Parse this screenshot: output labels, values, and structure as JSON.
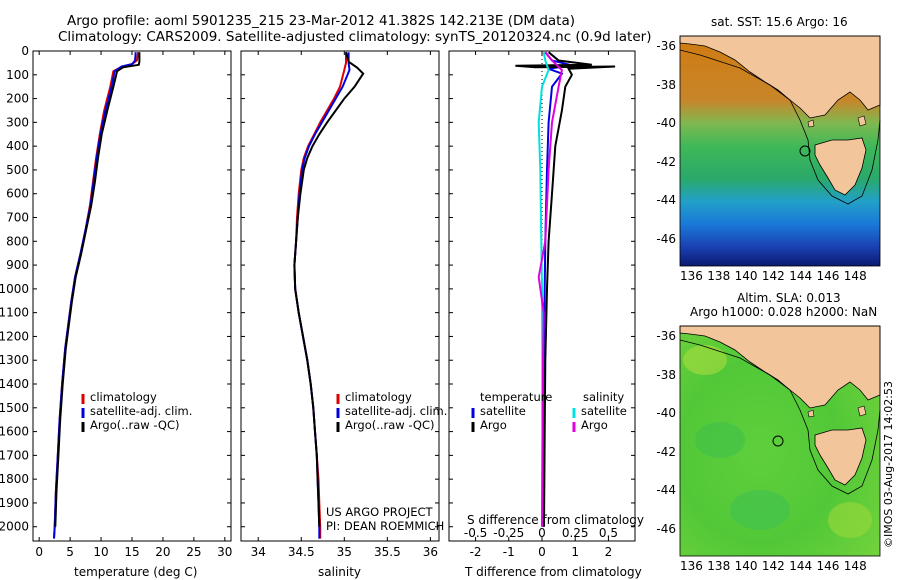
{
  "header": {
    "title_line1": "Argo profile: aoml 5901235_215 23-Mar-2012 41.382S 142.213E (DM data)",
    "title_line2": "Climatology: CARS2009. Satellite-adjusted climatology: synTS_20120324.nc (0.9d later)"
  },
  "chart_data": [
    {
      "type": "line",
      "panel": "temperature",
      "xlabel": "temperature (deg C)",
      "ylabel": "",
      "xlim": [
        -1,
        31
      ],
      "ylim": [
        2060,
        0
      ],
      "xticks": [
        0,
        5,
        10,
        15,
        20,
        25,
        30
      ],
      "yticks": [
        0,
        100,
        200,
        300,
        400,
        500,
        600,
        700,
        800,
        900,
        1000,
        1100,
        1200,
        1300,
        1400,
        1500,
        1600,
        1700,
        1800,
        1900,
        2000
      ],
      "legend": [
        "climatology",
        "satellite-adj. clim.",
        "Argo(..raw -QC)"
      ],
      "series": [
        {
          "name": "climatology",
          "color": "#e00000",
          "points": [
            [
              16,
              5
            ],
            [
              15.8,
              40
            ],
            [
              15,
              55
            ],
            [
              13.5,
              65
            ],
            [
              12,
              85
            ],
            [
              11.5,
              150
            ],
            [
              10.5,
              250
            ],
            [
              9.8,
              350
            ],
            [
              9.2,
              450
            ],
            [
              8.7,
              550
            ],
            [
              8.2,
              650
            ],
            [
              7.5,
              750
            ],
            [
              6.7,
              850
            ],
            [
              5.8,
              950
            ],
            [
              5.2,
              1050
            ],
            [
              4.7,
              1150
            ],
            [
              4.2,
              1250
            ],
            [
              3.7,
              1400
            ],
            [
              3.3,
              1550
            ],
            [
              3,
              1700
            ],
            [
              2.7,
              1850
            ],
            [
              2.5,
              2000
            ],
            [
              2.4,
              2050
            ]
          ]
        },
        {
          "name": "satellite-adj. clim.",
          "color": "#0000e0",
          "points": [
            [
              15.6,
              5
            ],
            [
              15.5,
              40
            ],
            [
              15,
              55
            ],
            [
              13.3,
              65
            ],
            [
              12.2,
              85
            ],
            [
              11.7,
              150
            ],
            [
              10.7,
              250
            ],
            [
              9.9,
              350
            ],
            [
              9.3,
              450
            ],
            [
              8.8,
              550
            ],
            [
              8.3,
              650
            ],
            [
              7.5,
              750
            ],
            [
              6.7,
              850
            ],
            [
              5.8,
              950
            ],
            [
              5.2,
              1050
            ],
            [
              4.7,
              1150
            ],
            [
              4.2,
              1250
            ],
            [
              3.7,
              1400
            ],
            [
              3.3,
              1550
            ],
            [
              3,
              1700
            ],
            [
              2.7,
              1850
            ],
            [
              2.5,
              2000
            ],
            [
              2.4,
              2050
            ]
          ]
        },
        {
          "name": "Argo(..raw -QC)",
          "color": "#000000",
          "points": [
            [
              16.2,
              5
            ],
            [
              16.2,
              45
            ],
            [
              16.1,
              58
            ],
            [
              15.2,
              62
            ],
            [
              13.6,
              68
            ],
            [
              12.6,
              85
            ],
            [
              12,
              150
            ],
            [
              11,
              250
            ],
            [
              10.1,
              350
            ],
            [
              9.5,
              450
            ],
            [
              9,
              550
            ],
            [
              8.4,
              650
            ],
            [
              7.6,
              750
            ],
            [
              6.8,
              850
            ],
            [
              5.9,
              950
            ],
            [
              5.3,
              1050
            ],
            [
              4.8,
              1150
            ],
            [
              4.3,
              1250
            ],
            [
              3.8,
              1400
            ],
            [
              3.4,
              1550
            ],
            [
              3.1,
              1700
            ],
            [
              2.8,
              1850
            ],
            [
              2.6,
              2000
            ]
          ]
        }
      ]
    },
    {
      "type": "line",
      "panel": "salinity",
      "xlabel": "salinity",
      "xlim": [
        33.8,
        36.1
      ],
      "ylim": [
        2060,
        0
      ],
      "xticks": [
        34,
        34.5,
        35,
        35.5,
        36
      ],
      "legend": [
        "climatology",
        "satellite-adj. clim.",
        "Argo(..raw -QC)"
      ],
      "annotation": [
        "US ARGO PROJECT",
        "PI: DEAN ROEMMICH"
      ],
      "series": [
        {
          "name": "climatology",
          "color": "#e00000",
          "points": [
            [
              35.02,
              5
            ],
            [
              35.02,
              50
            ],
            [
              35,
              80
            ],
            [
              34.95,
              150
            ],
            [
              34.88,
              200
            ],
            [
              34.8,
              250
            ],
            [
              34.72,
              300
            ],
            [
              34.65,
              350
            ],
            [
              34.58,
              400
            ],
            [
              34.53,
              450
            ],
            [
              34.5,
              500
            ],
            [
              34.47,
              600
            ],
            [
              34.45,
              700
            ],
            [
              34.44,
              800
            ],
            [
              34.42,
              900
            ],
            [
              34.43,
              1000
            ],
            [
              34.47,
              1100
            ],
            [
              34.52,
              1200
            ],
            [
              34.57,
              1300
            ],
            [
              34.61,
              1400
            ],
            [
              34.64,
              1500
            ],
            [
              34.66,
              1600
            ],
            [
              34.68,
              1700
            ],
            [
              34.7,
              1800
            ],
            [
              34.71,
              1900
            ],
            [
              34.72,
              2000
            ],
            [
              34.72,
              2050
            ]
          ]
        },
        {
          "name": "satellite-adj. clim.",
          "color": "#0000e0",
          "points": [
            [
              35.05,
              5
            ],
            [
              35.05,
              50
            ],
            [
              35.06,
              80
            ],
            [
              34.98,
              150
            ],
            [
              34.9,
              200
            ],
            [
              34.82,
              250
            ],
            [
              34.74,
              300
            ],
            [
              34.66,
              350
            ],
            [
              34.59,
              400
            ],
            [
              34.54,
              450
            ],
            [
              34.51,
              500
            ],
            [
              34.48,
              600
            ],
            [
              34.46,
              700
            ],
            [
              34.44,
              800
            ],
            [
              34.42,
              900
            ],
            [
              34.43,
              1000
            ],
            [
              34.47,
              1100
            ],
            [
              34.52,
              1200
            ],
            [
              34.57,
              1300
            ],
            [
              34.61,
              1400
            ],
            [
              34.64,
              1500
            ],
            [
              34.66,
              1600
            ],
            [
              34.68,
              1700
            ],
            [
              34.69,
              1800
            ],
            [
              34.7,
              1900
            ],
            [
              34.71,
              2000
            ],
            [
              34.71,
              2050
            ]
          ]
        },
        {
          "name": "Argo(..raw -QC)",
          "color": "#000000",
          "points": [
            [
              35.02,
              5
            ],
            [
              35.05,
              45
            ],
            [
              35.15,
              70
            ],
            [
              35.22,
              95
            ],
            [
              35.12,
              150
            ],
            [
              35.0,
              200
            ],
            [
              34.9,
              250
            ],
            [
              34.8,
              300
            ],
            [
              34.71,
              350
            ],
            [
              34.63,
              400
            ],
            [
              34.57,
              450
            ],
            [
              34.53,
              500
            ],
            [
              34.49,
              600
            ],
            [
              34.46,
              700
            ],
            [
              34.44,
              800
            ],
            [
              34.42,
              900
            ],
            [
              34.43,
              1000
            ],
            [
              34.47,
              1100
            ],
            [
              34.52,
              1200
            ],
            [
              34.57,
              1300
            ],
            [
              34.61,
              1400
            ],
            [
              34.64,
              1500
            ],
            [
              34.66,
              1600
            ],
            [
              34.68,
              1700
            ],
            [
              34.69,
              1800
            ],
            [
              34.7,
              1900
            ],
            [
              34.71,
              2000
            ]
          ]
        }
      ]
    },
    {
      "type": "line",
      "panel": "difference",
      "xlabel": "T difference from climatology",
      "xlabel_top": "S difference from climatology",
      "xlim": [
        -2.8,
        2.8
      ],
      "ylim": [
        2060,
        0
      ],
      "xticks": [
        -2,
        -1,
        0,
        1,
        2
      ],
      "xtick_labels_top": [
        "-0.5",
        "-0.25",
        "0",
        "0.25",
        "0.5"
      ],
      "xticks_top": [
        -2,
        -1,
        0,
        1,
        2
      ],
      "legend_left_title": "temperature",
      "legend_right_title": "salinity",
      "legend": [
        "satellite",
        "Argo",
        "satellite",
        "Argo"
      ],
      "series": [
        {
          "name": "temperature satellite",
          "color": "#0000e0",
          "points": [
            [
              0.1,
              5
            ],
            [
              0.3,
              40
            ],
            [
              0.9,
              60
            ],
            [
              0.2,
              75
            ],
            [
              0.6,
              95
            ],
            [
              0.3,
              150
            ],
            [
              0.2,
              300
            ],
            [
              0.15,
              500
            ],
            [
              0.1,
              800
            ],
            [
              0.08,
              1000
            ],
            [
              0.05,
              1300
            ],
            [
              0.03,
              1600
            ],
            [
              0.02,
              2000
            ]
          ]
        },
        {
          "name": "temperature Argo",
          "color": "#000000",
          "points": [
            [
              0.2,
              5
            ],
            [
              0.5,
              40
            ],
            [
              1.5,
              58
            ],
            [
              -0.8,
              62
            ],
            [
              -0.2,
              68
            ],
            [
              2.2,
              65
            ],
            [
              0.8,
              75
            ],
            [
              0.9,
              100
            ],
            [
              0.7,
              150
            ],
            [
              0.6,
              250
            ],
            [
              0.4,
              400
            ],
            [
              0.3,
              600
            ],
            [
              0.2,
              800
            ],
            [
              0.15,
              1000
            ],
            [
              0.1,
              1300
            ],
            [
              0.08,
              1600
            ],
            [
              0.06,
              2000
            ]
          ]
        },
        {
          "name": "salinity satellite",
          "color": "#00e0e0",
          "points": [
            [
              0.05,
              5
            ],
            [
              0.1,
              40
            ],
            [
              0.2,
              80
            ],
            [
              0.0,
              150
            ],
            [
              -0.1,
              300
            ],
            [
              -0.05,
              500
            ],
            [
              -0.02,
              800
            ],
            [
              0,
              1000
            ],
            [
              0.01,
              1300
            ],
            [
              0.01,
              1600
            ],
            [
              0,
              2000
            ]
          ]
        },
        {
          "name": "salinity Argo",
          "color": "#e000e0",
          "points": [
            [
              0.1,
              5
            ],
            [
              0.3,
              40
            ],
            [
              0.6,
              80
            ],
            [
              0.5,
              150
            ],
            [
              0.3,
              300
            ],
            [
              0.2,
              500
            ],
            [
              0.1,
              800
            ],
            [
              -0.1,
              950
            ],
            [
              0.05,
              1100
            ],
            [
              0.03,
              1300
            ],
            [
              0.02,
              1600
            ],
            [
              0,
              2000
            ]
          ]
        }
      ]
    }
  ],
  "maps": {
    "sst": {
      "title": "sat. SST: 15.6  Argo: 16",
      "xticks": [
        "136",
        "138",
        "140",
        "142",
        "144",
        "146",
        "148"
      ],
      "yticks": [
        "-36",
        "-38",
        "-40",
        "-42",
        "-44",
        "-46"
      ],
      "marker": {
        "lon": 142.213,
        "lat": -41.382
      }
    },
    "sla": {
      "title_line1": "Altim. SLA: 0.013",
      "title_line2": "Argo h1000: 0.028 h2000: NaN",
      "xticks": [
        "136",
        "138",
        "140",
        "142",
        "144",
        "146",
        "148"
      ],
      "yticks": [
        "-36",
        "-38",
        "-40",
        "-42",
        "-44",
        "-46"
      ],
      "marker": {
        "lon": 142.213,
        "lat": -41.382
      }
    }
  },
  "side_stamp": "©IMOS 03-Aug-2017 14:02:53"
}
